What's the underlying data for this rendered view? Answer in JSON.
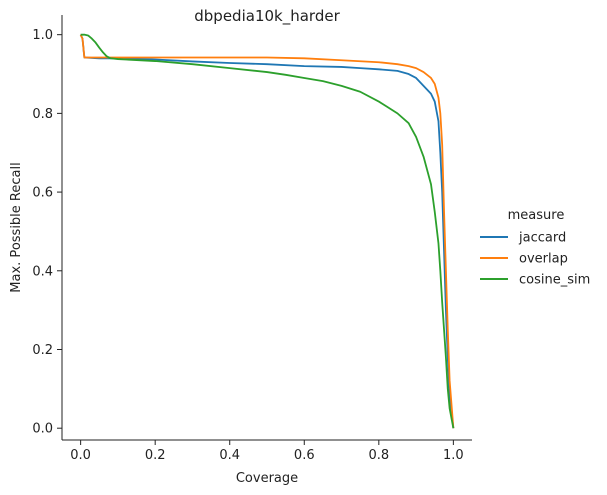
{
  "chart_data": {
    "type": "line",
    "title": "dbpedia10k_harder",
    "xlabel": "Coverage",
    "ylabel": "Max. Possible Recall",
    "xlim": [
      -0.05,
      1.05
    ],
    "ylim": [
      -0.03,
      1.05
    ],
    "xticks": [
      0.0,
      0.2,
      0.4,
      0.6,
      0.8,
      1.0
    ],
    "xtick_labels": [
      "0.0",
      "0.2",
      "0.4",
      "0.6",
      "0.8",
      "1.0"
    ],
    "yticks": [
      0.0,
      0.2,
      0.4,
      0.6,
      0.8,
      1.0
    ],
    "ytick_labels": [
      "0.0",
      "0.2",
      "0.4",
      "0.6",
      "0.8",
      "1.0"
    ],
    "grid": false,
    "legend": {
      "title": "measure",
      "placement": "right-outside"
    },
    "series": [
      {
        "name": "jaccard",
        "color": "#1f77b4",
        "x": [
          0.0,
          0.005,
          0.01,
          0.05,
          0.1,
          0.2,
          0.3,
          0.4,
          0.5,
          0.6,
          0.7,
          0.75,
          0.8,
          0.85,
          0.88,
          0.9,
          0.92,
          0.94,
          0.95,
          0.96,
          0.965,
          0.97,
          0.975,
          0.98,
          0.985,
          0.99,
          1.0
        ],
        "y": [
          1.0,
          0.99,
          0.942,
          0.94,
          0.94,
          0.937,
          0.932,
          0.928,
          0.925,
          0.92,
          0.918,
          0.915,
          0.912,
          0.908,
          0.9,
          0.89,
          0.87,
          0.85,
          0.83,
          0.78,
          0.7,
          0.6,
          0.45,
          0.3,
          0.18,
          0.08,
          0.0
        ]
      },
      {
        "name": "overlap",
        "color": "#ff7f0e",
        "x": [
          0.0,
          0.005,
          0.01,
          0.05,
          0.1,
          0.2,
          0.3,
          0.4,
          0.5,
          0.6,
          0.7,
          0.8,
          0.85,
          0.88,
          0.9,
          0.92,
          0.94,
          0.95,
          0.96,
          0.965,
          0.97,
          0.975,
          0.98,
          0.985,
          0.99,
          1.0
        ],
        "y": [
          1.0,
          0.99,
          0.942,
          0.942,
          0.942,
          0.942,
          0.942,
          0.942,
          0.942,
          0.94,
          0.935,
          0.93,
          0.925,
          0.92,
          0.915,
          0.905,
          0.89,
          0.875,
          0.84,
          0.8,
          0.72,
          0.55,
          0.4,
          0.25,
          0.12,
          0.0
        ]
      },
      {
        "name": "cosine_sim",
        "color": "#2ca02c",
        "x": [
          0.0,
          0.01,
          0.02,
          0.03,
          0.04,
          0.05,
          0.06,
          0.07,
          0.08,
          0.1,
          0.2,
          0.3,
          0.4,
          0.5,
          0.55,
          0.6,
          0.65,
          0.7,
          0.75,
          0.8,
          0.82,
          0.85,
          0.88,
          0.9,
          0.92,
          0.94,
          0.95,
          0.96,
          0.965,
          0.97,
          0.975,
          0.98,
          0.985,
          0.99,
          1.0
        ],
        "y": [
          1.0,
          1.0,
          0.998,
          0.99,
          0.98,
          0.967,
          0.955,
          0.945,
          0.94,
          0.938,
          0.933,
          0.925,
          0.915,
          0.905,
          0.898,
          0.89,
          0.882,
          0.87,
          0.855,
          0.83,
          0.818,
          0.8,
          0.775,
          0.74,
          0.69,
          0.62,
          0.55,
          0.47,
          0.4,
          0.32,
          0.25,
          0.18,
          0.1,
          0.05,
          0.0
        ]
      }
    ]
  }
}
